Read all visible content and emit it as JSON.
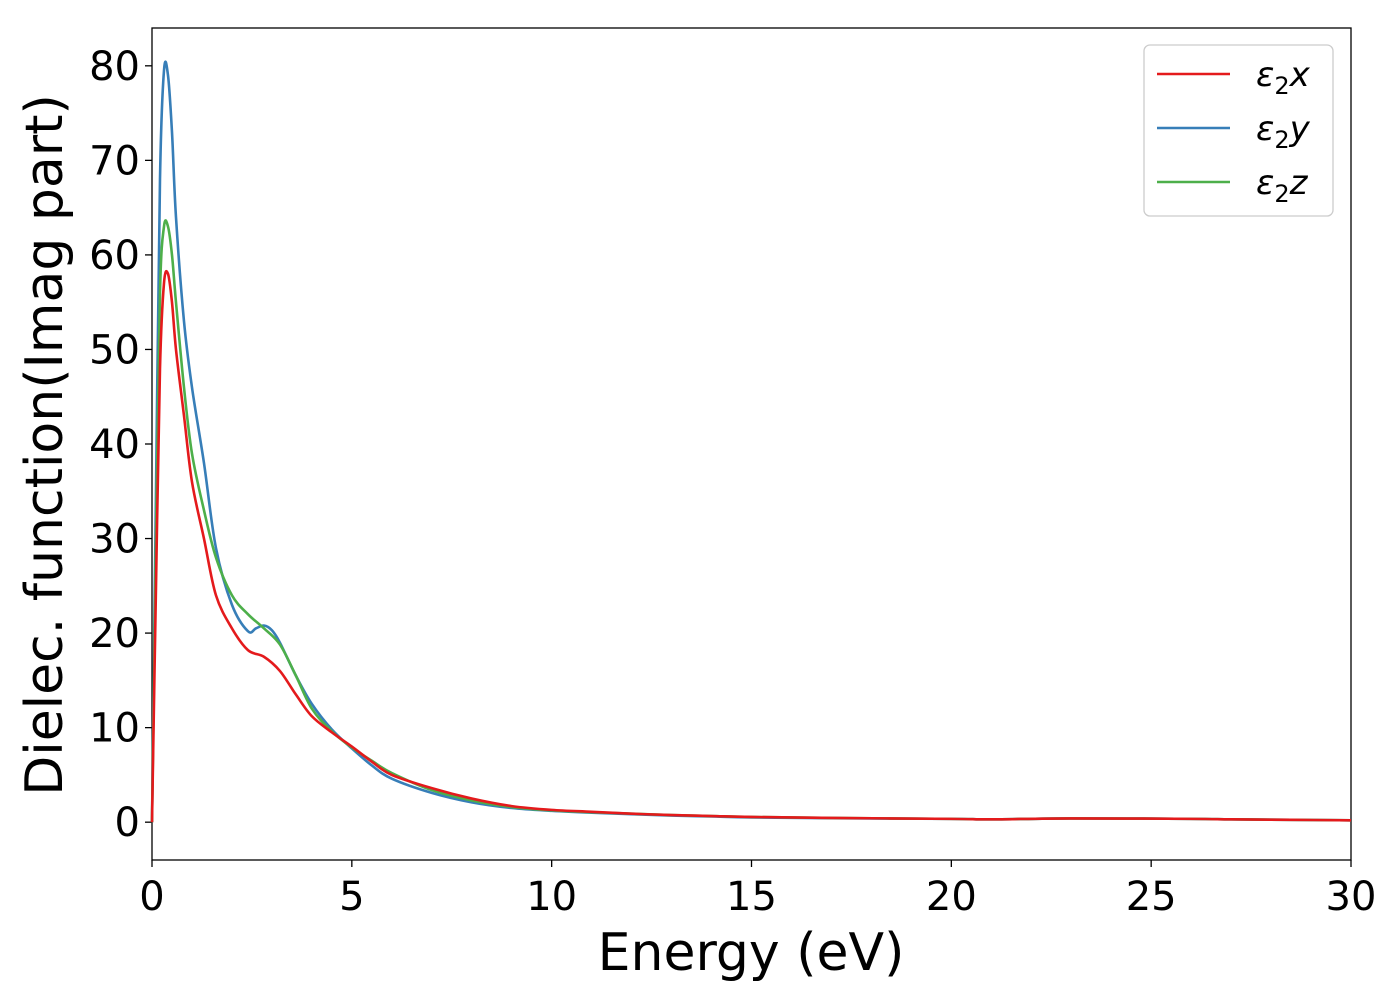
{
  "chart_data": {
    "type": "line",
    "title": "",
    "xlabel": "Energy (eV)",
    "ylabel": "Dielec. function(Imag part)",
    "xlim": [
      0,
      30
    ],
    "ylim": [
      -4,
      84
    ],
    "xticks": [
      0,
      5,
      10,
      15,
      20,
      25,
      30
    ],
    "yticks": [
      0,
      10,
      20,
      30,
      40,
      50,
      60,
      70,
      80
    ],
    "grid": false,
    "legend_position": "top-right",
    "series": [
      {
        "name": "ε2x",
        "color": "#e41a1c",
        "x": [
          0,
          0.1,
          0.2,
          0.3,
          0.4,
          0.5,
          0.6,
          0.8,
          1.0,
          1.3,
          1.6,
          2.0,
          2.4,
          2.8,
          3.2,
          3.6,
          4.0,
          4.5,
          5.0,
          5.5,
          6.0,
          7.0,
          8.0,
          9.0,
          10.0,
          11.0,
          12.0,
          13.0,
          14.0,
          15.0,
          17.0,
          20.0,
          21.0,
          23.0,
          26.0,
          27.0,
          28.5,
          30.0
        ],
        "y": [
          0,
          25,
          48,
          57,
          58,
          55,
          50,
          43,
          36,
          30,
          24,
          20.5,
          18.2,
          17.5,
          16,
          13.5,
          11.2,
          9.5,
          8,
          6.4,
          5.0,
          3.6,
          2.5,
          1.7,
          1.3,
          1.1,
          0.9,
          0.75,
          0.65,
          0.55,
          0.45,
          0.35,
          0.3,
          0.4,
          0.35,
          0.3,
          0.25,
          0.2
        ]
      },
      {
        "name": "ε2y",
        "color": "#377eb8",
        "x": [
          0,
          0.1,
          0.2,
          0.3,
          0.4,
          0.5,
          0.6,
          0.8,
          1.0,
          1.3,
          1.6,
          2.0,
          2.4,
          2.6,
          2.8,
          3.0,
          3.2,
          3.6,
          4.0,
          4.5,
          5.0,
          5.5,
          6.0,
          7.0,
          8.0,
          9.0,
          10.0,
          11.0,
          12.0,
          13.0,
          14.0,
          15.0,
          17.0,
          20.0,
          21.0,
          23.0,
          26.0,
          27.0,
          28.5,
          30.0
        ],
        "y": [
          0,
          35,
          68,
          79.5,
          79,
          73,
          64,
          53,
          46,
          38,
          29,
          23,
          20.2,
          20.5,
          20.8,
          20.3,
          19,
          15.5,
          12.5,
          9.8,
          7.8,
          6.0,
          4.6,
          3.1,
          2.1,
          1.5,
          1.2,
          1.0,
          0.85,
          0.7,
          0.6,
          0.5,
          0.42,
          0.35,
          0.3,
          0.4,
          0.35,
          0.3,
          0.25,
          0.2
        ]
      },
      {
        "name": "ε2z",
        "color": "#4daf4a",
        "x": [
          0,
          0.1,
          0.2,
          0.3,
          0.4,
          0.5,
          0.6,
          0.8,
          1.0,
          1.3,
          1.6,
          2.0,
          2.4,
          2.8,
          3.2,
          3.6,
          4.0,
          4.5,
          5.0,
          5.5,
          6.0,
          7.0,
          8.0,
          9.0,
          10.0,
          11.0,
          12.0,
          13.0,
          14.0,
          15.0,
          17.0,
          20.0,
          21.0,
          23.0,
          26.0,
          27.0,
          28.5,
          30.0
        ],
        "y": [
          0,
          30,
          56,
          63,
          63,
          60,
          55,
          46,
          39,
          33,
          28,
          24,
          22,
          20.5,
          18.8,
          15.5,
          12,
          9.6,
          7.9,
          6.5,
          5.2,
          3.4,
          2.3,
          1.6,
          1.25,
          1.05,
          0.9,
          0.75,
          0.65,
          0.55,
          0.45,
          0.35,
          0.3,
          0.4,
          0.35,
          0.3,
          0.25,
          0.2
        ]
      }
    ]
  },
  "legend": {
    "entries": [
      {
        "base": "ε",
        "sub": "2",
        "var": "x"
      },
      {
        "base": "ε",
        "sub": "2",
        "var": "y"
      },
      {
        "base": "ε",
        "sub": "2",
        "var": "z"
      }
    ]
  }
}
